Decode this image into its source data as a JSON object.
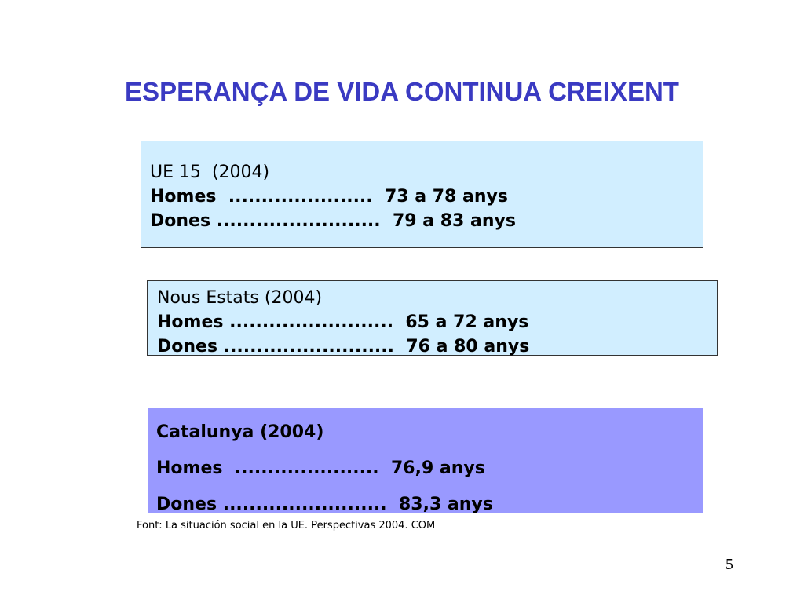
{
  "slide": {
    "title": "ESPERANÇA DE VIDA CONTINUA CREIXENT",
    "colors": {
      "title": "#3a3ac2",
      "light_box": "#d1eeff",
      "catalunya_box": "#9999ff"
    },
    "boxes": [
      {
        "heading": "UE 15  (2004)",
        "homes": "Homes  ......................  73 a 78 anys",
        "dones": "Dones .........................  79 a 83 anys"
      },
      {
        "heading": "Nous Estats (2004)",
        "homes": "Homes .........................  65 a 72 anys",
        "dones": "Dones ..........................  76 a 80 anys"
      },
      {
        "heading": "Catalunya (2004)",
        "homes": "Homes  ......................  76,9 anys",
        "dones": "Dones .........................  83,3 anys"
      }
    ],
    "source": "Font: La situación social en la UE. Perspectivas 2004. COM",
    "page_number": "5"
  }
}
